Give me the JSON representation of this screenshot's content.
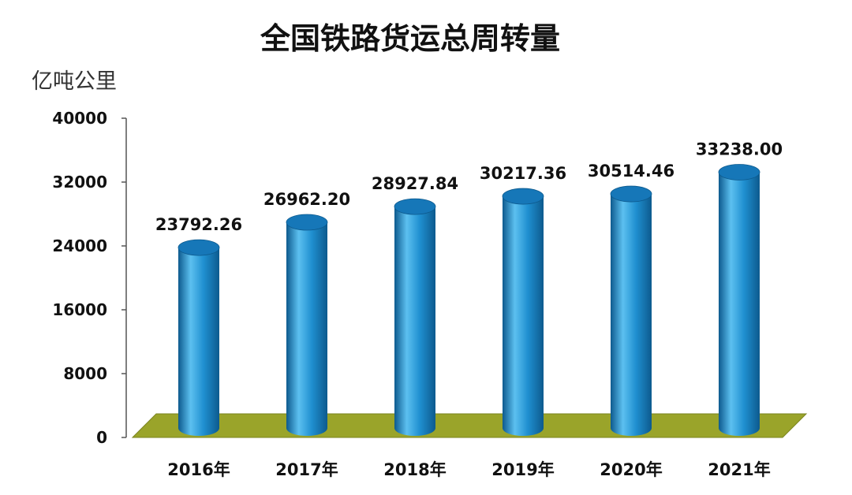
{
  "chart_data": {
    "type": "bar",
    "title": "全国铁路货运总周转量",
    "unit_label": "亿吨公里",
    "categories": [
      "2016年",
      "2017年",
      "2018年",
      "2019年",
      "2020年",
      "2021年"
    ],
    "values": [
      23792.26,
      26962.2,
      28927.84,
      30217.36,
      30514.46,
      33238.0
    ],
    "value_labels": [
      "23792.26",
      "26962.20",
      "28927.84",
      "30217.36",
      "30514.46",
      "33238.00"
    ],
    "yticks": [
      "0",
      "8000",
      "16000",
      "24000",
      "32000",
      "40000"
    ],
    "ylim": [
      0,
      40000
    ],
    "grid": false,
    "style": "3d-cylinder",
    "colors": {
      "bar": "#1f8fd0",
      "bar_dark": "#0d5a8e",
      "bar_light": "#5cc0f0",
      "bar_top": "#1677b8",
      "floor": "#9aa42a",
      "floor_dark": "#7b8420",
      "axis": "#555555"
    }
  }
}
